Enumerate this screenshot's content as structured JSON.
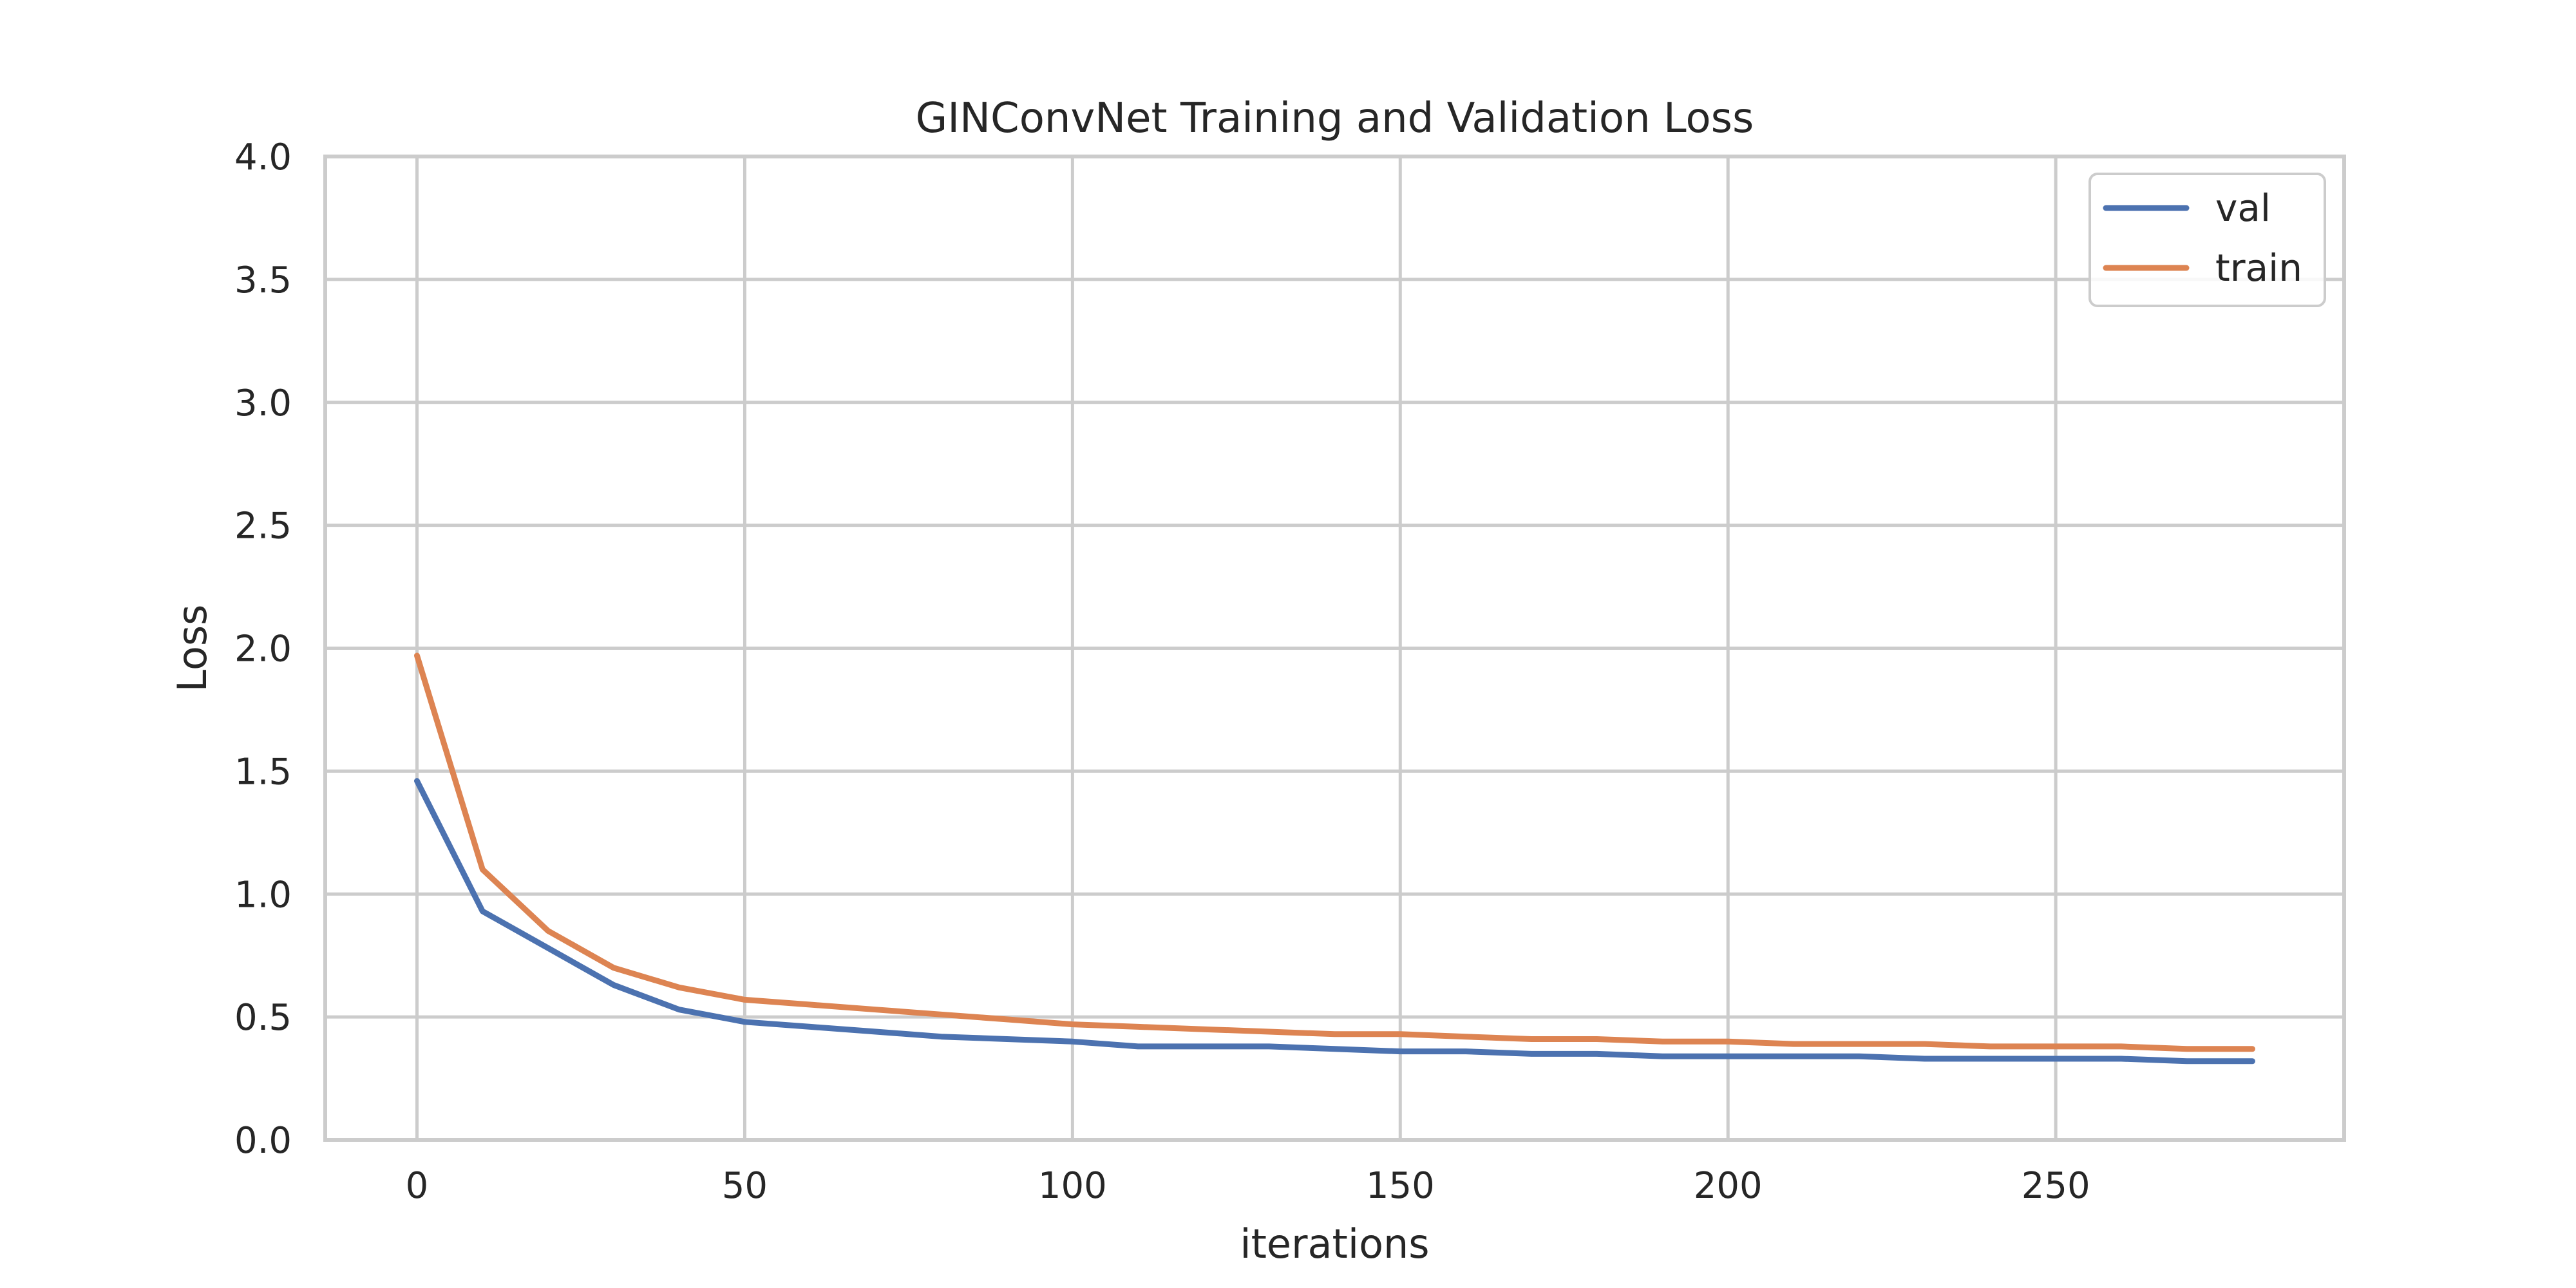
{
  "chart_data": {
    "type": "line",
    "title": "GINConvNet Training and Validation Loss",
    "xlabel": "iterations",
    "ylabel": "Loss",
    "xlim": [
      -14,
      294
    ],
    "ylim": [
      0.0,
      4.0
    ],
    "xticks": [
      0,
      50,
      100,
      150,
      200,
      250
    ],
    "yticks": [
      0.0,
      0.5,
      1.0,
      1.5,
      2.0,
      2.5,
      3.0,
      3.5,
      4.0
    ],
    "ytick_labels": [
      "0.0",
      "0.5",
      "1.0",
      "1.5",
      "2.0",
      "2.5",
      "3.0",
      "3.5",
      "4.0"
    ],
    "grid": true,
    "legend_position": "top-right",
    "x_start": 0,
    "x_step": 10,
    "series": [
      {
        "name": "val",
        "color": "#4c72b0",
        "values": [
          1.46,
          0.93,
          0.78,
          0.63,
          0.53,
          0.48,
          0.46,
          0.44,
          0.42,
          0.41,
          0.4,
          0.38,
          0.38,
          0.38,
          0.37,
          0.36,
          0.36,
          0.35,
          0.35,
          0.34,
          0.34,
          0.34,
          0.34,
          0.33,
          0.33,
          0.33,
          0.33,
          0.32,
          0.32
        ]
      },
      {
        "name": "train",
        "color": "#dd8452",
        "values": [
          1.97,
          1.1,
          0.85,
          0.7,
          0.62,
          0.57,
          0.55,
          0.53,
          0.51,
          0.49,
          0.47,
          0.46,
          0.45,
          0.44,
          0.43,
          0.43,
          0.42,
          0.41,
          0.41,
          0.4,
          0.4,
          0.39,
          0.39,
          0.39,
          0.38,
          0.38,
          0.38,
          0.37,
          0.37
        ]
      }
    ]
  }
}
